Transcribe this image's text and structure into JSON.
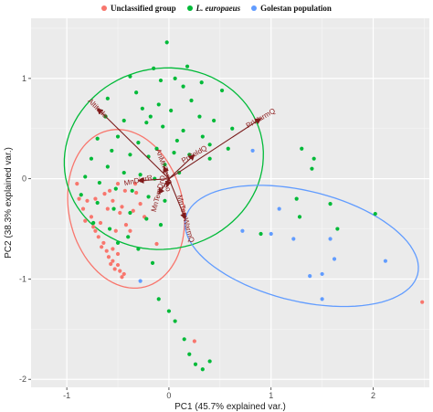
{
  "chart_data": {
    "type": "scatter",
    "subtype": "pca-biplot",
    "xlabel": "PC1 (45.7% explained var.)",
    "ylabel": "PC2 (38.3% explained var.)",
    "xlim": [
      -1.35,
      2.55
    ],
    "ylim": [
      -2.08,
      1.6
    ],
    "xticks": [
      -1,
      0,
      1,
      2
    ],
    "yticks": [
      -2,
      -1,
      0,
      1
    ],
    "grid": true,
    "background": "#ebebeb",
    "legend_position": "top",
    "series": [
      {
        "name": "Unclassified group",
        "color": "#f8766d",
        "points": [
          [
            -0.9,
            -0.05
          ],
          [
            -0.88,
            -0.2
          ],
          [
            -0.84,
            -0.3
          ],
          [
            -0.8,
            -0.22
          ],
          [
            -0.82,
            -0.42
          ],
          [
            -0.76,
            -0.38
          ],
          [
            -0.74,
            -0.48
          ],
          [
            -0.72,
            -0.52
          ],
          [
            -0.69,
            -0.58
          ],
          [
            -0.67,
            -0.44
          ],
          [
            -0.64,
            -0.64
          ],
          [
            -0.61,
            -0.72
          ],
          [
            -0.59,
            -0.78
          ],
          [
            -0.57,
            -0.85
          ],
          [
            -0.55,
            -0.82
          ],
          [
            -0.53,
            -0.9
          ],
          [
            -0.5,
            -0.86
          ],
          [
            -0.48,
            -0.92
          ],
          [
            -0.46,
            -0.98
          ],
          [
            -0.44,
            -0.95
          ],
          [
            -0.6,
            -0.3
          ],
          [
            -0.55,
            -0.22
          ],
          [
            -0.52,
            -0.52
          ],
          [
            -0.48,
            -0.34
          ],
          [
            -0.46,
            -0.28
          ],
          [
            -0.42,
            -0.46
          ],
          [
            -0.38,
            -0.52
          ],
          [
            -0.35,
            -0.32
          ],
          [
            -0.32,
            -0.14
          ],
          [
            -0.28,
            -0.25
          ],
          [
            -0.24,
            -0.38
          ],
          [
            -0.58,
            -0.12
          ],
          [
            -0.5,
            -0.05
          ],
          [
            -0.43,
            -0.12
          ],
          [
            -0.66,
            -0.68
          ],
          [
            -0.55,
            -0.7
          ],
          [
            -0.5,
            -0.75
          ],
          [
            -0.33,
            -0.05
          ],
          [
            -0.72,
            -0.2
          ],
          [
            -0.63,
            -0.15
          ],
          [
            -0.12,
            -0.65
          ],
          [
            0.25,
            -1.62
          ],
          [
            2.48,
            -1.23
          ]
        ]
      },
      {
        "name": "L. europaeus",
        "color": "#00ba38",
        "points": [
          [
            -0.02,
            1.36
          ],
          [
            0.06,
            1.0
          ],
          [
            0.18,
            1.12
          ],
          [
            -0.15,
            1.1
          ],
          [
            -0.08,
            0.98
          ],
          [
            0.14,
            0.92
          ],
          [
            0.22,
            0.78
          ],
          [
            -0.32,
            0.86
          ],
          [
            -0.1,
            0.74
          ],
          [
            0.02,
            0.68
          ],
          [
            0.3,
            0.62
          ],
          [
            0.44,
            0.58
          ],
          [
            -0.44,
            0.58
          ],
          [
            -0.22,
            0.56
          ],
          [
            -0.06,
            0.52
          ],
          [
            0.14,
            0.48
          ],
          [
            0.33,
            0.42
          ],
          [
            -0.62,
            0.62
          ],
          [
            -0.5,
            0.42
          ],
          [
            -0.3,
            0.36
          ],
          [
            -0.12,
            0.3
          ],
          [
            0.05,
            0.26
          ],
          [
            0.2,
            0.24
          ],
          [
            0.4,
            0.2
          ],
          [
            -0.7,
            0.4
          ],
          [
            -0.56,
            0.28
          ],
          [
            -0.38,
            0.24
          ],
          [
            -0.2,
            0.22
          ],
          [
            -0.04,
            0.14
          ],
          [
            -0.76,
            0.2
          ],
          [
            -0.6,
            0.12
          ],
          [
            -0.44,
            0.06
          ],
          [
            -0.28,
            0.04
          ],
          [
            -0.14,
            0.0
          ],
          [
            0.1,
            0.06
          ],
          [
            -0.82,
            0.02
          ],
          [
            -0.68,
            -0.04
          ],
          [
            -0.52,
            -0.1
          ],
          [
            -0.36,
            -0.12
          ],
          [
            -0.2,
            -0.18
          ],
          [
            -0.04,
            -0.22
          ],
          [
            -0.86,
            -0.16
          ],
          [
            -0.7,
            -0.24
          ],
          [
            -0.54,
            -0.3
          ],
          [
            -0.38,
            -0.34
          ],
          [
            -0.22,
            -0.4
          ],
          [
            -0.08,
            -0.46
          ],
          [
            -0.74,
            -0.44
          ],
          [
            -0.58,
            -0.5
          ],
          [
            -0.4,
            -0.58
          ],
          [
            -0.5,
            -0.64
          ],
          [
            -0.3,
            -0.7
          ],
          [
            -0.16,
            -0.84
          ],
          [
            -0.1,
            -1.2
          ],
          [
            0.0,
            -1.32
          ],
          [
            0.06,
            -1.42
          ],
          [
            0.15,
            -1.6
          ],
          [
            0.2,
            -1.75
          ],
          [
            0.26,
            -1.85
          ],
          [
            0.33,
            -1.9
          ],
          [
            0.4,
            -1.82
          ],
          [
            -0.6,
            0.8
          ],
          [
            -0.38,
            1.02
          ],
          [
            0.32,
            0.96
          ],
          [
            0.52,
            0.88
          ],
          [
            0.62,
            0.5
          ],
          [
            0.58,
            0.3
          ],
          [
            -0.18,
            0.62
          ],
          [
            0.08,
            0.38
          ],
          [
            -0.26,
            0.7
          ],
          [
            1.3,
            0.3
          ],
          [
            1.42,
            0.2
          ],
          [
            1.4,
            0.1
          ],
          [
            1.25,
            -0.2
          ],
          [
            1.65,
            -0.5
          ],
          [
            1.28,
            -0.38
          ],
          [
            1.58,
            -0.25
          ],
          [
            2.02,
            -0.35
          ],
          [
            0.9,
            -0.55
          ],
          [
            0.4,
            0.34
          ]
        ]
      },
      {
        "name": "Golestan population",
        "color": "#619cff",
        "points": [
          [
            0.82,
            0.28
          ],
          [
            1.08,
            -0.3
          ],
          [
            1.0,
            -0.55
          ],
          [
            1.22,
            -0.6
          ],
          [
            1.58,
            -0.6
          ],
          [
            1.62,
            -0.8
          ],
          [
            1.5,
            -0.95
          ],
          [
            1.38,
            -0.97
          ],
          [
            1.5,
            -1.2
          ],
          [
            0.72,
            -0.52
          ],
          [
            2.12,
            -0.82
          ],
          [
            -0.28,
            -1.02
          ]
        ]
      }
    ],
    "ellipses": [
      {
        "group": "Unclassified group",
        "color": "#f8766d",
        "cx": -0.42,
        "cy": -0.3,
        "rx": 0.56,
        "ry": 0.8,
        "angle": 12
      },
      {
        "group": "L. europaeus",
        "color": "#00ba38",
        "cx": -0.05,
        "cy": 0.2,
        "rx": 0.98,
        "ry": 0.9,
        "angle": 15
      },
      {
        "group": "Golestan population",
        "color": "#619cff",
        "cx": 1.3,
        "cy": -0.67,
        "rx": 1.17,
        "ry": 0.55,
        "angle": -14
      }
    ],
    "loadings": [
      {
        "name": "Altitude",
        "x": -0.7,
        "y": 0.7,
        "angle": 45
      },
      {
        "name": "PrWarmQ",
        "x": 0.9,
        "y": 0.6,
        "angle": -30
      },
      {
        "name": "PrColdQ",
        "x": 0.25,
        "y": 0.24,
        "angle": -30
      },
      {
        "name": "MnDiurR",
        "x": -0.3,
        "y": -0.02,
        "angle": -12
      },
      {
        "name": "AnMnTemp",
        "x": -0.05,
        "y": 0.12,
        "angle": 70
      },
      {
        "name": "Iso",
        "x": -0.02,
        "y": -0.08,
        "angle": 70
      },
      {
        "name": "MnTemDrQ",
        "x": -0.1,
        "y": -0.15,
        "angle": -75
      },
      {
        "name": "MnTemWarmQ",
        "x": 0.16,
        "y": -0.4,
        "angle": 75
      }
    ],
    "loading_origin": [
      0.0,
      0.0
    ],
    "loading_color": "#7a1c1c"
  }
}
